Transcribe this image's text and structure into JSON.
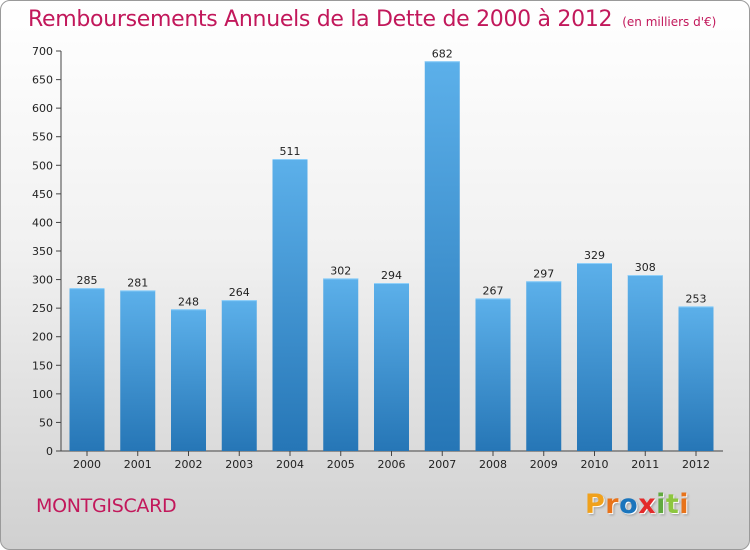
{
  "header": {
    "title": "Remboursements Annuels de la Dette de 2000 à 2012",
    "unit": "(en milliers d'€)"
  },
  "footer": {
    "town": "MONTGISCARD",
    "logo_letters": [
      "P",
      "r",
      "o",
      "x",
      "i",
      "t",
      "i"
    ],
    "logo_colors": [
      "#f0a11c",
      "#e8731a",
      "#1b75bc",
      "#e32b2b",
      "#61a93f",
      "#8dc63f",
      "#e8731a"
    ]
  },
  "colors": {
    "accent": "#c2185b",
    "bar_light": "#5cb0ea",
    "bar_dark": "#2676b6"
  },
  "chart_data": {
    "type": "bar",
    "title": "Remboursements Annuels de la Dette de 2000 à 2012",
    "subtitle": "(en milliers d'€)",
    "categories": [
      "2000",
      "2001",
      "2002",
      "2003",
      "2004",
      "2005",
      "2006",
      "2007",
      "2008",
      "2009",
      "2010",
      "2011",
      "2012"
    ],
    "values": [
      285,
      281,
      248,
      264,
      511,
      302,
      294,
      682,
      267,
      297,
      329,
      308,
      253
    ],
    "ylim": [
      0,
      700
    ],
    "yticks": [
      0,
      50,
      100,
      150,
      200,
      250,
      300,
      350,
      400,
      450,
      500,
      550,
      600,
      650,
      700
    ],
    "grid": false,
    "data_labels": true
  }
}
